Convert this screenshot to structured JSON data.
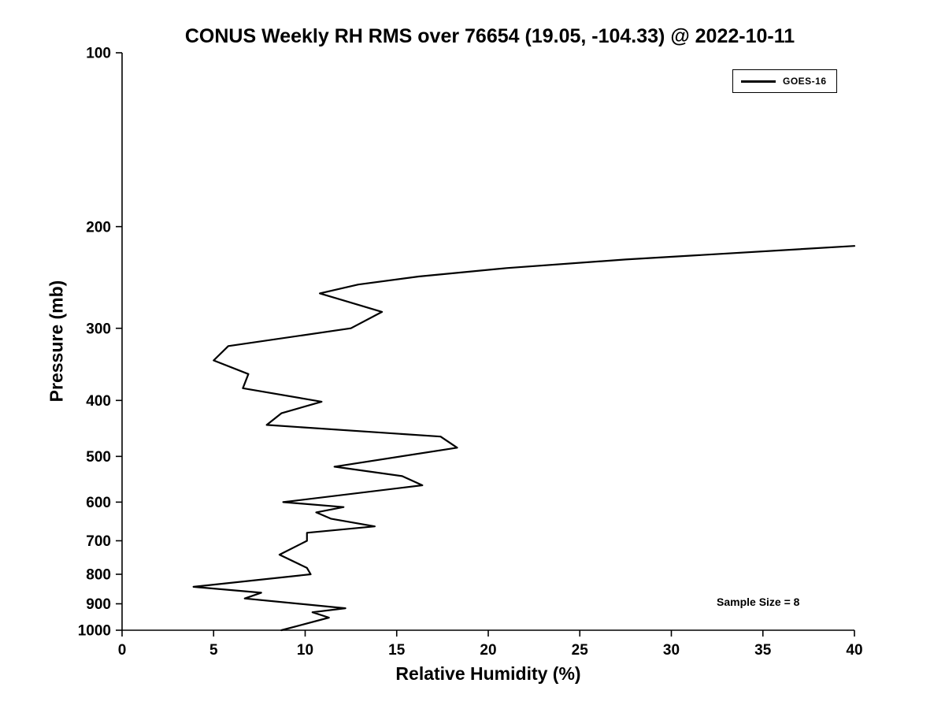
{
  "chart_data": {
    "type": "line",
    "title": "CONUS Weekly RH RMS over 76654 (19.05, -104.33) @ 2022-10-11",
    "xlabel": "Relative Humidity (%)",
    "ylabel": "Pressure (mb)",
    "xlim": [
      0,
      40
    ],
    "ylim": [
      100,
      1000
    ],
    "y_scale": "log",
    "y_inverted": true,
    "x_ticks": [
      0,
      5,
      10,
      15,
      20,
      25,
      30,
      35,
      40
    ],
    "y_ticks": [
      100,
      200,
      300,
      400,
      500,
      600,
      700,
      800,
      900,
      1000
    ],
    "grid": false,
    "legend_position": "top-right",
    "annotation": "Sample Size = 8",
    "line_color": "#000000",
    "axis_color": "#000000",
    "series": [
      {
        "name": "GOES-16",
        "points_pressure_rh": [
          [
            216,
            40.0
          ],
          [
            228,
            27.5
          ],
          [
            236,
            21.0
          ],
          [
            244,
            16.2
          ],
          [
            252,
            12.9
          ],
          [
            261,
            10.8
          ],
          [
            281,
            14.2
          ],
          [
            300,
            12.5
          ],
          [
            322,
            5.8
          ],
          [
            341,
            5.0
          ],
          [
            360,
            6.9
          ],
          [
            381,
            6.6
          ],
          [
            402,
            10.9
          ],
          [
            421,
            8.7
          ],
          [
            441,
            7.9
          ],
          [
            462,
            17.4
          ],
          [
            483,
            18.3
          ],
          [
            521,
            11.6
          ],
          [
            541,
            15.3
          ],
          [
            561,
            16.4
          ],
          [
            600,
            8.8
          ],
          [
            612,
            12.1
          ],
          [
            625,
            10.6
          ],
          [
            641,
            11.4
          ],
          [
            661,
            13.8
          ],
          [
            678,
            10.1
          ],
          [
            700,
            10.1
          ],
          [
            740,
            8.6
          ],
          [
            780,
            10.1
          ],
          [
            800,
            10.3
          ],
          [
            841,
            3.9
          ],
          [
            861,
            7.6
          ],
          [
            881,
            6.7
          ],
          [
            916,
            12.2
          ],
          [
            931,
            10.4
          ],
          [
            951,
            11.3
          ],
          [
            1000,
            8.7
          ]
        ]
      }
    ]
  }
}
